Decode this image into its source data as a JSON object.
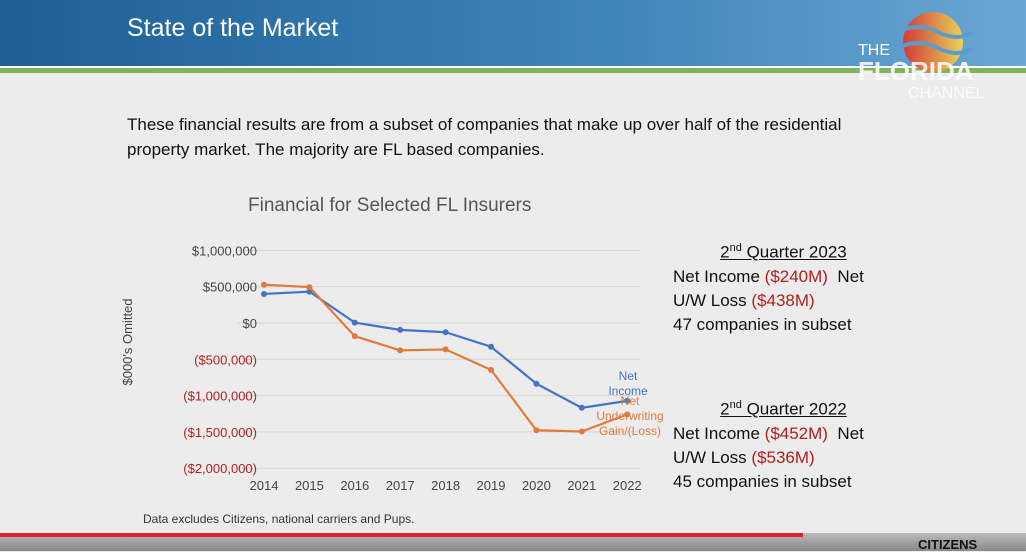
{
  "header": {
    "title": "State of the Market"
  },
  "logo": {
    "the": "THE",
    "florida": "FLORIDA",
    "channel": "CHANNEL"
  },
  "intro": "These financial results are from a subset of companies that make up over half of the residential property market. The majority are FL based companies.",
  "q2023": {
    "heading_pre": "2",
    "heading_sup": "nd",
    "heading_post": " Quarter 2023",
    "ni_label": "Net Income ",
    "ni_value": "($240M)",
    "uw_label_a": "  Net",
    "uw_label_b": "U/W Loss ",
    "uw_value": "($438M)",
    "companies": "47 companies in subset"
  },
  "q2022": {
    "heading_pre": "2",
    "heading_sup": "nd",
    "heading_post": " Quarter 2022",
    "ni_label": "Net Income ",
    "ni_value": "($452M)",
    "uw_label_a": "  Net",
    "uw_label_b": "U/W Loss ",
    "uw_value": "($536M)",
    "companies": "45 companies in subset"
  },
  "note": "Data excludes Citizens, national carriers and Pups.",
  "citizens_logo": "CITIZENS",
  "video": {
    "progress_percent": 78
  },
  "chart_data": {
    "type": "line",
    "title": "Financial for Selected FL Insurers",
    "ylabel": "$000's Omitted",
    "x": [
      2014,
      2015,
      2016,
      2017,
      2018,
      2019,
      2020,
      2021,
      2022
    ],
    "ylim": [
      -2000000,
      1000000
    ],
    "yticks": [
      1000000,
      500000,
      0,
      -500000,
      -1000000,
      -1500000,
      -2000000
    ],
    "ytick_labels": [
      "$1,000,000",
      "$500,000",
      "$0",
      "($500,000)",
      "($1,000,000)",
      "($1,500,000)",
      "($2,000,000)"
    ],
    "grid": true,
    "series": [
      {
        "name": "Net Income",
        "label_lines": [
          "Net",
          "Income"
        ],
        "color": "#4472c4",
        "values": [
          400000,
          432000,
          5000,
          -95000,
          -127000,
          -327000,
          -836000,
          -1168000,
          -1073000
        ]
      },
      {
        "name": "Net Underwriting Gain/(Loss)",
        "label_lines": [
          "Net",
          "Underwriting",
          "Gain/(Loss)"
        ],
        "color": "#e07b39",
        "values": [
          527000,
          495000,
          -182000,
          -377000,
          -364000,
          -645000,
          -1477000,
          -1495000,
          -1259000
        ]
      }
    ]
  }
}
